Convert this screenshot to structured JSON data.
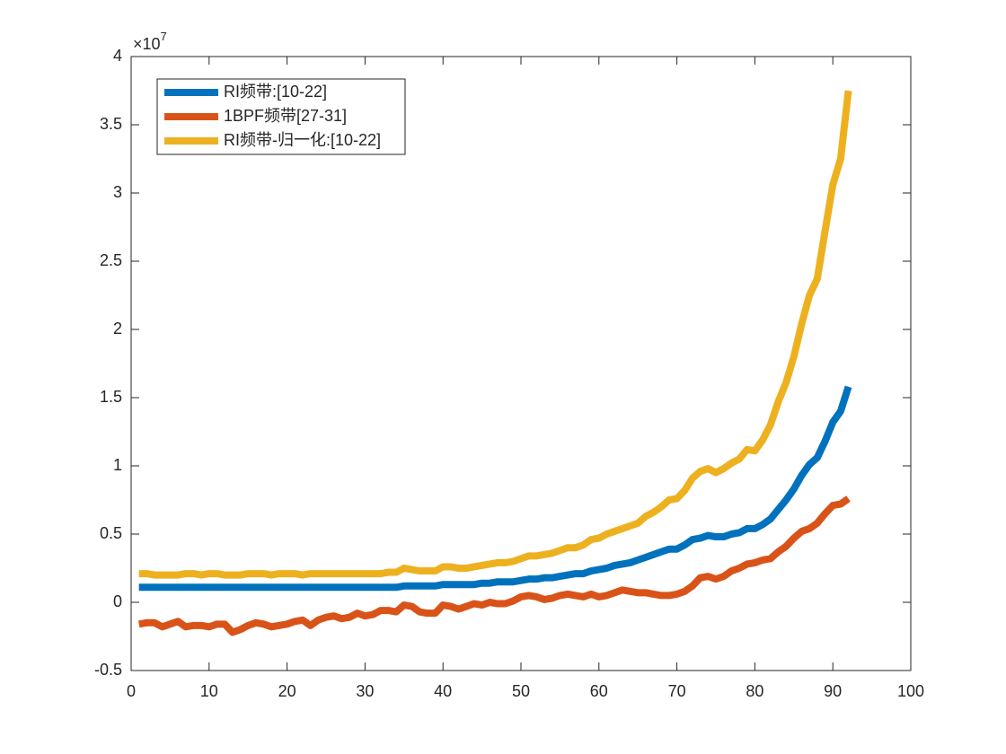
{
  "chart_data": {
    "type": "line",
    "y_exponent": {
      "base": "×10",
      "power": "7"
    },
    "x": [
      1,
      2,
      3,
      4,
      5,
      6,
      7,
      8,
      9,
      10,
      11,
      12,
      13,
      14,
      15,
      16,
      17,
      18,
      19,
      20,
      21,
      22,
      23,
      24,
      25,
      26,
      27,
      28,
      29,
      30,
      31,
      32,
      33,
      34,
      35,
      36,
      37,
      38,
      39,
      40,
      41,
      42,
      43,
      44,
      45,
      46,
      47,
      48,
      49,
      50,
      51,
      52,
      53,
      54,
      55,
      56,
      57,
      58,
      59,
      60,
      61,
      62,
      63,
      64,
      65,
      66,
      67,
      68,
      69,
      70,
      71,
      72,
      73,
      74,
      75,
      76,
      77,
      78,
      79,
      80,
      81,
      82,
      83,
      84,
      85,
      86,
      87,
      88,
      89,
      90,
      91,
      92
    ],
    "series": [
      {
        "name": "RI频带:[10-22]",
        "color": "#0072BD",
        "values": [
          0.11,
          0.11,
          0.11,
          0.11,
          0.11,
          0.11,
          0.11,
          0.11,
          0.11,
          0.11,
          0.11,
          0.11,
          0.11,
          0.11,
          0.11,
          0.11,
          0.11,
          0.11,
          0.11,
          0.11,
          0.11,
          0.11,
          0.11,
          0.11,
          0.11,
          0.11,
          0.11,
          0.11,
          0.11,
          0.11,
          0.11,
          0.11,
          0.11,
          0.11,
          0.12,
          0.12,
          0.12,
          0.12,
          0.12,
          0.13,
          0.13,
          0.13,
          0.13,
          0.13,
          0.14,
          0.14,
          0.15,
          0.15,
          0.15,
          0.16,
          0.17,
          0.17,
          0.18,
          0.18,
          0.19,
          0.2,
          0.21,
          0.21,
          0.23,
          0.24,
          0.25,
          0.27,
          0.28,
          0.29,
          0.31,
          0.33,
          0.35,
          0.37,
          0.39,
          0.39,
          0.42,
          0.46,
          0.47,
          0.49,
          0.48,
          0.48,
          0.5,
          0.51,
          0.54,
          0.54,
          0.57,
          0.61,
          0.68,
          0.75,
          0.83,
          0.93,
          1.01,
          1.06,
          1.18,
          1.32,
          1.4,
          1.58
        ]
      },
      {
        "name": "1BPF频带[27-31]",
        "color": "#D95319",
        "values": [
          -0.16,
          -0.15,
          -0.15,
          -0.18,
          -0.16,
          -0.14,
          -0.18,
          -0.17,
          -0.17,
          -0.18,
          -0.16,
          -0.16,
          -0.22,
          -0.2,
          -0.17,
          -0.15,
          -0.16,
          -0.18,
          -0.17,
          -0.16,
          -0.14,
          -0.13,
          -0.17,
          -0.13,
          -0.11,
          -0.1,
          -0.12,
          -0.11,
          -0.08,
          -0.1,
          -0.09,
          -0.06,
          -0.06,
          -0.07,
          -0.02,
          -0.03,
          -0.07,
          -0.08,
          -0.08,
          -0.02,
          -0.03,
          -0.05,
          -0.03,
          -0.01,
          -0.02,
          0.0,
          -0.01,
          -0.01,
          0.01,
          0.04,
          0.05,
          0.04,
          0.02,
          0.03,
          0.05,
          0.06,
          0.05,
          0.04,
          0.06,
          0.04,
          0.05,
          0.07,
          0.09,
          0.08,
          0.07,
          0.07,
          0.06,
          0.05,
          0.05,
          0.06,
          0.08,
          0.12,
          0.18,
          0.19,
          0.17,
          0.19,
          0.23,
          0.25,
          0.28,
          0.29,
          0.31,
          0.32,
          0.37,
          0.41,
          0.47,
          0.52,
          0.54,
          0.58,
          0.65,
          0.71,
          0.72,
          0.76
        ]
      },
      {
        "name": "RI频带-归一化:[10-22]",
        "color": "#EDB120",
        "values": [
          0.21,
          0.21,
          0.2,
          0.2,
          0.2,
          0.2,
          0.21,
          0.21,
          0.2,
          0.21,
          0.21,
          0.2,
          0.2,
          0.2,
          0.21,
          0.21,
          0.21,
          0.2,
          0.21,
          0.21,
          0.21,
          0.2,
          0.21,
          0.21,
          0.21,
          0.21,
          0.21,
          0.21,
          0.21,
          0.21,
          0.21,
          0.21,
          0.22,
          0.22,
          0.25,
          0.24,
          0.23,
          0.23,
          0.23,
          0.26,
          0.26,
          0.25,
          0.25,
          0.26,
          0.27,
          0.28,
          0.29,
          0.29,
          0.3,
          0.32,
          0.34,
          0.34,
          0.35,
          0.36,
          0.38,
          0.4,
          0.4,
          0.42,
          0.46,
          0.47,
          0.5,
          0.52,
          0.54,
          0.56,
          0.58,
          0.63,
          0.66,
          0.7,
          0.75,
          0.76,
          0.82,
          0.91,
          0.96,
          0.98,
          0.95,
          0.98,
          1.02,
          1.05,
          1.12,
          1.11,
          1.19,
          1.3,
          1.47,
          1.61,
          1.8,
          2.04,
          2.25,
          2.37,
          2.72,
          3.06,
          3.25,
          3.75
        ]
      }
    ],
    "xlim": [
      0,
      100
    ],
    "xticks": [
      0,
      10,
      20,
      30,
      40,
      50,
      60,
      70,
      80,
      90,
      100
    ],
    "ylim": [
      -0.5,
      4
    ],
    "yticks": [
      -0.5,
      0,
      0.5,
      1,
      1.5,
      2,
      2.5,
      3,
      3.5,
      4
    ],
    "legend": "northwest"
  }
}
